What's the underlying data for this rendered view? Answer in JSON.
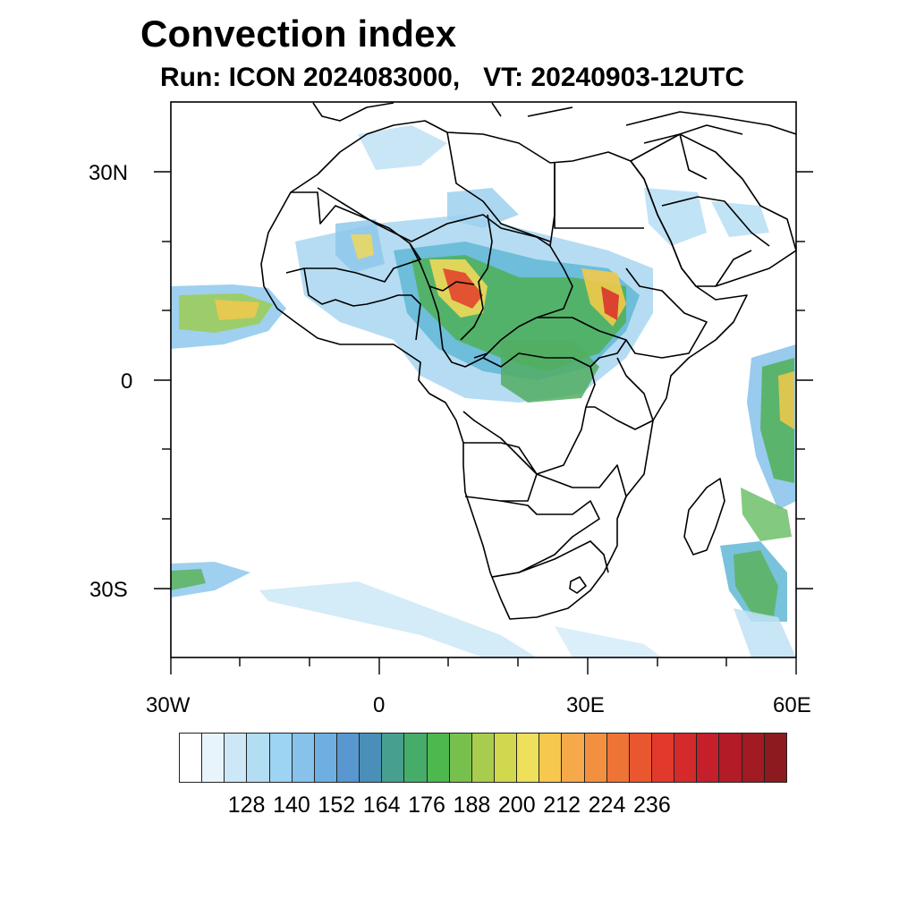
{
  "header": {
    "title": "Convection index",
    "run_label": "Run: ICON 2024083000,",
    "valid_time_label": "VT: 20240903-12UTC"
  },
  "map": {
    "lat_labels": [
      "30N",
      "0",
      "30S"
    ],
    "lon_labels": [
      "30W",
      "0",
      "30E",
      "60E"
    ],
    "extent": {
      "lon_min": -30,
      "lon_max": 60,
      "lat_min": -40,
      "lat_max": 40
    }
  },
  "colorbar": {
    "labels": [
      "128",
      "140",
      "152",
      "164",
      "176",
      "188",
      "200",
      "212",
      "224",
      "236"
    ],
    "colors": [
      "#ffffff",
      "#e8f4fc",
      "#cce8f6",
      "#b3ddf3",
      "#9dd3f3",
      "#86c2ea",
      "#6eaee0",
      "#5897cf",
      "#4a8fb8",
      "#47a08f",
      "#45ac6a",
      "#4cb84e",
      "#78c04e",
      "#a8cd4e",
      "#d2d84e",
      "#eee05a",
      "#f6c84e",
      "#f5a94a",
      "#f39040",
      "#ee7336",
      "#e9572e",
      "#e13a2c",
      "#d42a2c",
      "#c41f2a",
      "#b31b26",
      "#a21a22",
      "#8c1a1e"
    ]
  }
}
